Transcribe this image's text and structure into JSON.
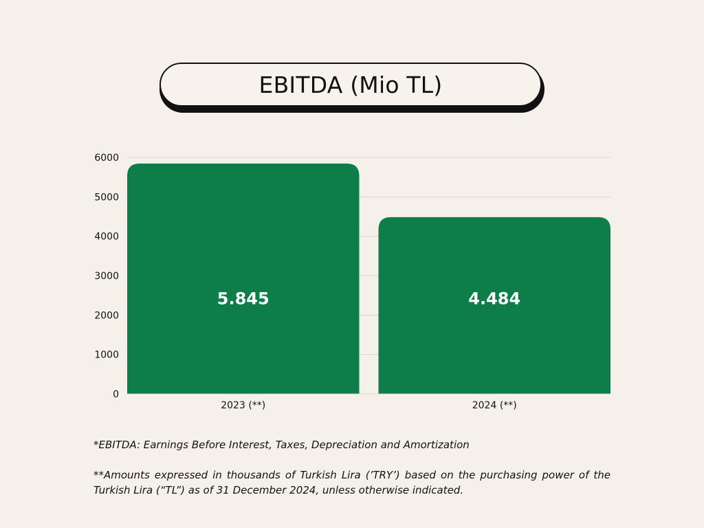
{
  "title": "EBITDA (Mio TL)",
  "footnotes": [
    "*EBITDA: Earnings Before Interest, Taxes, Depreciation and Amortization",
    "**Amounts expressed in thousands of Turkish Lira (’TRY’) based on the purchasing power of the Turkish Lira (“TL”) as of 31 December 2024, unless otherwise indicated."
  ],
  "colors": {
    "background": "#f5f1ea",
    "bar": "#0d7d4a",
    "bar_label": "#ffffff",
    "grid": "#d9d4cc",
    "text": "#111111"
  },
  "chart_data": {
    "type": "bar",
    "categories": [
      "2023 (**)",
      "2024 (**)"
    ],
    "values": [
      5845,
      4484
    ],
    "data_labels": [
      "5.845",
      "4.484"
    ],
    "title": "EBITDA (Mio TL)",
    "xlabel": "",
    "ylabel": "",
    "ylim": [
      0,
      6000
    ],
    "yticks": [
      0,
      1000,
      2000,
      3000,
      4000,
      5000,
      6000
    ],
    "grid": true,
    "legend": "none"
  }
}
